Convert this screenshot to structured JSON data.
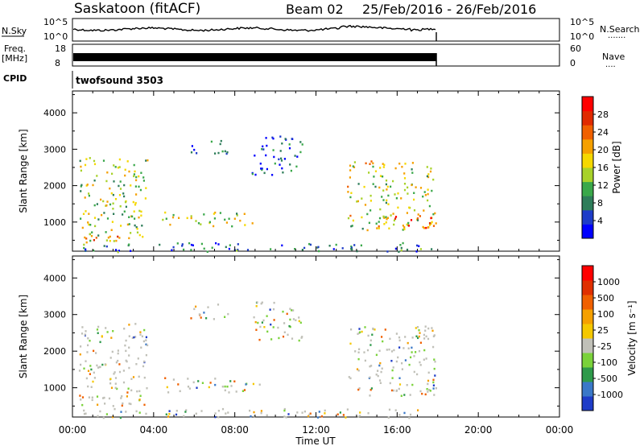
{
  "header": {
    "station": "Saskatoon (fitACF)",
    "beam": "Beam 02",
    "date_range": "25/Feb/2016 - 26/Feb/2016"
  },
  "summary_panels": {
    "nsky_label": "N.Sky",
    "nsky_ticks": [
      "10^5",
      "10^0"
    ],
    "nsearch_label": "N.Search",
    "nsearch_ticks": [
      "10^5",
      "10^0"
    ],
    "freq_label": "Freq.",
    "freq_unit": "[MHz]",
    "freq_ticks": [
      "18",
      "8"
    ],
    "nave_label": "Nave",
    "nave_ticks": [
      "60",
      "0"
    ],
    "cpid_label": "CPID",
    "cpid_value": "twofsound 3503"
  },
  "chart_data": [
    {
      "type": "heatmap",
      "name": "power",
      "ylabel": "Slant Range [km]",
      "xlabel": "Time UT",
      "x_ticks": [
        "00:00",
        "04:00",
        "08:00",
        "12:00",
        "16:00",
        "20:00",
        "00:00"
      ],
      "y_ticks": [
        1000,
        2000,
        3000,
        4000
      ],
      "ylim": [
        200,
        4600
      ],
      "xlim_hours": [
        0,
        24
      ],
      "colorbar": {
        "label": "Power [dB]",
        "ticks": [
          "4",
          "8",
          "12",
          "16",
          "20",
          "24",
          "28"
        ],
        "colors": [
          "#0000ff",
          "#1e3cc8",
          "#2e7d5a",
          "#3aa84a",
          "#a8d22a",
          "#f5d800",
          "#f5a000",
          "#f06000",
          "#e02a00",
          "#ff0000"
        ]
      },
      "echo_regions": [
        {
          "t0": 0.3,
          "t1": 3.7,
          "r0": 500,
          "r1": 2800,
          "level": 0.45
        },
        {
          "t0": 0.5,
          "t1": 3.0,
          "r0": 400,
          "r1": 650,
          "level": 0.65
        },
        {
          "t0": 4.4,
          "t1": 9.2,
          "r0": 900,
          "r1": 1300,
          "level": 0.5
        },
        {
          "t0": 5.8,
          "t1": 7.8,
          "r0": 2900,
          "r1": 3300,
          "level": 0.2
        },
        {
          "t0": 8.8,
          "t1": 11.3,
          "r0": 2300,
          "r1": 3400,
          "level": 0.15
        },
        {
          "t0": 13.5,
          "t1": 17.9,
          "r0": 800,
          "r1": 2700,
          "level": 0.5
        },
        {
          "t0": 15.5,
          "t1": 17.9,
          "r0": 850,
          "r1": 1250,
          "level": 0.85
        },
        {
          "t0": 0.3,
          "t1": 17.9,
          "r0": 200,
          "r1": 450,
          "level": 0.2
        }
      ]
    },
    {
      "type": "heatmap",
      "name": "velocity",
      "ylabel": "Slant Range [km]",
      "xlabel": "Time UT",
      "x_ticks": [
        "00:00",
        "04:00",
        "08:00",
        "12:00",
        "16:00",
        "20:00",
        "00:00"
      ],
      "y_ticks": [
        1000,
        2000,
        3000,
        4000
      ],
      "ylim": [
        200,
        4600
      ],
      "xlim_hours": [
        0,
        24
      ],
      "colorbar": {
        "label": "Velocity [m s⁻¹]",
        "ticks": [
          "1000",
          "500",
          "100",
          "25",
          "-25",
          "-100",
          "-500",
          "-1000"
        ],
        "colors": [
          "#1e3cc8",
          "#3a78c8",
          "#2e9a4a",
          "#7ad23a",
          "#c0c0b8",
          "#f5c800",
          "#f5a000",
          "#f06000",
          "#e03000",
          "#ff0000"
        ]
      },
      "echo_regions": [
        {
          "t0": 0.3,
          "t1": 3.7,
          "r0": 500,
          "r1": 2800,
          "level": 0.45
        },
        {
          "t0": 4.4,
          "t1": 9.2,
          "r0": 900,
          "r1": 1300,
          "level": 0.5
        },
        {
          "t0": 5.8,
          "t1": 7.8,
          "r0": 2900,
          "r1": 3300,
          "level": 0.5
        },
        {
          "t0": 8.8,
          "t1": 11.3,
          "r0": 2300,
          "r1": 3400,
          "level": 0.5
        },
        {
          "t0": 13.5,
          "t1": 17.9,
          "r0": 800,
          "r1": 2700,
          "level": 0.5
        },
        {
          "t0": 0.3,
          "t1": 17.9,
          "r0": 200,
          "r1": 450,
          "level": 0.3
        }
      ]
    }
  ]
}
